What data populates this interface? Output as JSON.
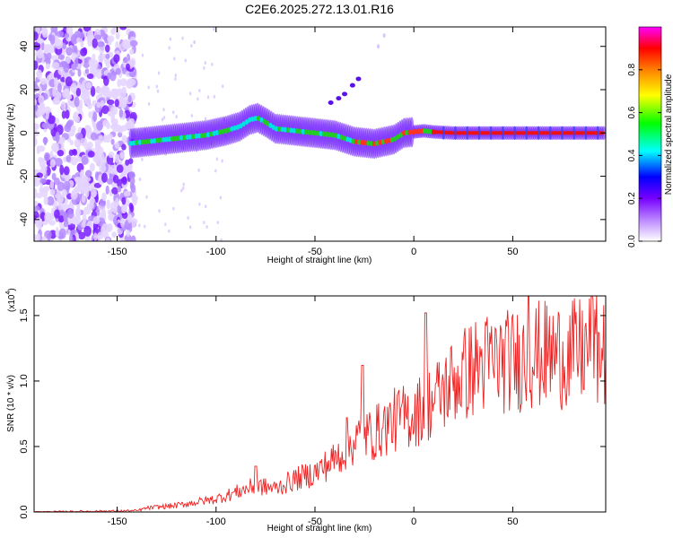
{
  "chart_data": [
    {
      "type": "heatmap",
      "title": "C2E6.2025.272.13.01.R16",
      "xlabel": "Height of straight line (km)",
      "ylabel": "Frequency (Hz)",
      "xlim": [
        -192,
        97
      ],
      "ylim": [
        -50,
        49
      ],
      "xticks": [
        -150,
        -100,
        -50,
        0,
        50
      ],
      "yticks": [
        -40,
        -20,
        0,
        20,
        40
      ],
      "ridge_x": [
        -145,
        -135,
        -125,
        -115,
        -105,
        -95,
        -88,
        -83,
        -79,
        -75,
        -70,
        -60,
        -50,
        -40,
        -30,
        -20,
        -10,
        -5,
        0,
        5,
        10,
        20,
        40,
        60,
        80,
        96
      ],
      "ridge_freq": [
        -5,
        -4,
        -3,
        -2,
        -1,
        1,
        3,
        6,
        7,
        5,
        2,
        1,
        0,
        -1,
        -4,
        -5,
        -3,
        0,
        0.5,
        1,
        0.5,
        0,
        0,
        0,
        0,
        0
      ],
      "noise_region_x": [
        -192,
        -141
      ],
      "colorbar": {
        "label": "Normalized spectral amplitude",
        "ticks": [
          "0.0",
          "0.2",
          "0.4",
          "0.6",
          "0.8"
        ],
        "range": [
          0,
          1
        ],
        "colors": [
          "#ffffff",
          "#c8a0ff",
          "#7700ff",
          "#0000ff",
          "#00ffff",
          "#00ff00",
          "#ffff00",
          "#ff8000",
          "#ff0000",
          "#ff00ff"
        ]
      }
    },
    {
      "type": "line",
      "xlabel": "Height of straight line (km)",
      "ylabel": "SNR (10 * v/v)",
      "scale_label": "(x10",
      "scale_exp": "4",
      "scale_close": ")",
      "xlim": [
        -192,
        97
      ],
      "ylim": [
        0,
        1.65
      ],
      "xticks": [
        -150,
        -100,
        -50,
        0,
        50
      ],
      "yticks": [
        "0.0",
        "0.5",
        "1.0",
        "1.5"
      ],
      "line_color": "#ee2222",
      "x": [
        -192,
        -140,
        -135,
        -120,
        -100,
        -90,
        -80,
        -70,
        -60,
        -50,
        -40,
        -30,
        -20,
        -10,
        0,
        10,
        20,
        30,
        40,
        50,
        60,
        70,
        80,
        90,
        97
      ],
      "y": [
        0.0,
        0.01,
        0.03,
        0.05,
        0.1,
        0.15,
        0.2,
        0.18,
        0.25,
        0.3,
        0.4,
        0.55,
        0.6,
        0.7,
        0.75,
        0.85,
        1.0,
        1.1,
        1.15,
        1.15,
        1.2,
        1.2,
        1.2,
        1.25,
        1.2
      ],
      "spikes": [
        {
          "x": -80,
          "y": 0.35
        },
        {
          "x": -34,
          "y": 0.72
        },
        {
          "x": -26,
          "y": 1.12
        },
        {
          "x": 6,
          "y": 1.52
        },
        {
          "x": 58,
          "y": 1.65
        },
        {
          "x": 90,
          "y": 1.65
        }
      ]
    }
  ]
}
